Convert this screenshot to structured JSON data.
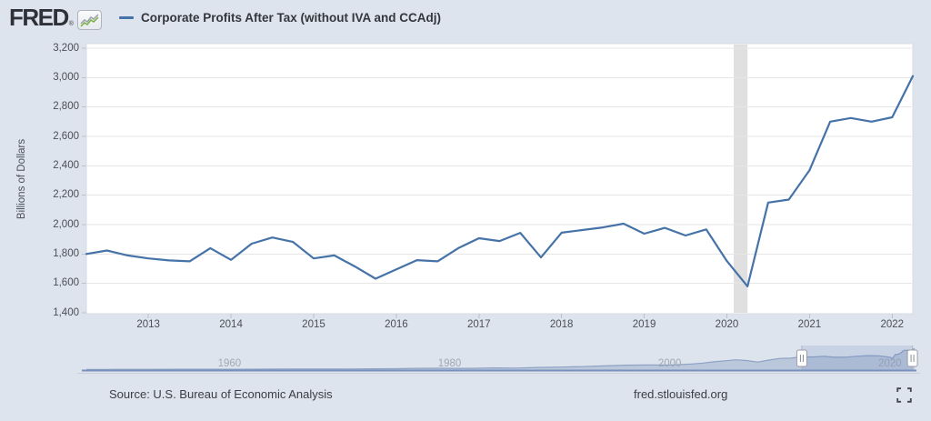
{
  "header": {
    "logo_text": "FRED",
    "registered_mark": "®"
  },
  "footer": {
    "source": "Source: U.S. Bureau of Economic Analysis",
    "site": "fred.stlouisfed.org"
  },
  "colors": {
    "page_bg": "#dde4ed",
    "plot_bg": "#ffffff",
    "gridline": "#e6e6e6",
    "plot_border": "#d7dbe2",
    "line": "#4572a7",
    "recession_band": "#e0e0e0",
    "axis_text": "#4a4f57",
    "minimap_fill": "#b7c3d8",
    "minimap_stroke": "#8da2c4",
    "minimap_baseline": "#7890bc",
    "minimap_label": "#a0a8b3",
    "selection_fill": "rgba(90,120,185,0.16)",
    "logo_green": "#76b041",
    "logo_gray": "#9aa1a8"
  },
  "chart_data": [
    {
      "type": "line",
      "title": "Corporate Profits After Tax (without IVA and CCAdj)",
      "ylabel": "Billions of Dollars",
      "frequency": "Quarterly",
      "xlim_years": [
        2012.25,
        2022.25
      ],
      "ylim": [
        1400,
        3230
      ],
      "grid": "horizontal-only",
      "y_ticks": [
        {
          "value": 3200,
          "label": "3,200"
        },
        {
          "value": 3000,
          "label": "3,000"
        },
        {
          "value": 2800,
          "label": "2,800"
        },
        {
          "value": 2600,
          "label": "2,600"
        },
        {
          "value": 2400,
          "label": "2,400"
        },
        {
          "value": 2200,
          "label": "2,200"
        },
        {
          "value": 2000,
          "label": "2,000"
        },
        {
          "value": 1800,
          "label": "1,800"
        },
        {
          "value": 1600,
          "label": "1,600"
        },
        {
          "value": 1400,
          "label": "1,400"
        }
      ],
      "x_tick_years": [
        2013,
        2014,
        2015,
        2016,
        2017,
        2018,
        2019,
        2020,
        2021,
        2022
      ],
      "recession_band_years": [
        2020.083,
        2020.25
      ],
      "points": [
        [
          "2012-04-01",
          1800
        ],
        [
          "2012-07-01",
          1824
        ],
        [
          "2012-10-01",
          1790
        ],
        [
          "2013-01-01",
          1770
        ],
        [
          "2013-04-01",
          1756
        ],
        [
          "2013-07-01",
          1750
        ],
        [
          "2013-10-01",
          1840
        ],
        [
          "2014-01-01",
          1760
        ],
        [
          "2014-04-01",
          1870
        ],
        [
          "2014-07-01",
          1912
        ],
        [
          "2014-10-01",
          1882
        ],
        [
          "2015-01-01",
          1770
        ],
        [
          "2015-04-01",
          1790
        ],
        [
          "2015-07-01",
          1715
        ],
        [
          "2015-10-01",
          1632
        ],
        [
          "2016-01-01",
          1695
        ],
        [
          "2016-04-01",
          1758
        ],
        [
          "2016-07-01",
          1750
        ],
        [
          "2016-10-01",
          1840
        ],
        [
          "2017-01-01",
          1907
        ],
        [
          "2017-04-01",
          1888
        ],
        [
          "2017-07-01",
          1944
        ],
        [
          "2017-10-01",
          1777
        ],
        [
          "2018-01-01",
          1945
        ],
        [
          "2018-04-01",
          1963
        ],
        [
          "2018-07-01",
          1981
        ],
        [
          "2018-10-01",
          2006
        ],
        [
          "2019-01-01",
          1938
        ],
        [
          "2019-04-01",
          1978
        ],
        [
          "2019-07-01",
          1926
        ],
        [
          "2019-10-01",
          1967
        ],
        [
          "2020-01-01",
          1752
        ],
        [
          "2020-04-01",
          1580
        ],
        [
          "2020-07-01",
          2150
        ],
        [
          "2020-10-01",
          2170
        ],
        [
          "2021-01-01",
          2370
        ],
        [
          "2021-04-01",
          2700
        ],
        [
          "2021-07-01",
          2725
        ],
        [
          "2021-10-01",
          2700
        ],
        [
          "2022-01-01",
          2730
        ],
        [
          "2022-04-01",
          3010
        ]
      ]
    },
    {
      "type": "area",
      "role": "range-selector-minimap",
      "xlim_years": [
        1947,
        2022.25
      ],
      "selection_years": [
        2012.0,
        2022.05
      ],
      "year_labels": [
        1960,
        1980,
        2000,
        2020
      ],
      "series": [
        [
          1947,
          20
        ],
        [
          1949,
          28
        ],
        [
          1951,
          38
        ],
        [
          1953,
          37
        ],
        [
          1955,
          45
        ],
        [
          1957,
          46
        ],
        [
          1959,
          52
        ],
        [
          1961,
          52
        ],
        [
          1963,
          66
        ],
        [
          1965,
          84
        ],
        [
          1967,
          82
        ],
        [
          1969,
          78
        ],
        [
          1971,
          88
        ],
        [
          1973,
          110
        ],
        [
          1975,
          133
        ],
        [
          1977,
          175
        ],
        [
          1979,
          198
        ],
        [
          1980,
          185
        ],
        [
          1982,
          176
        ],
        [
          1984,
          238
        ],
        [
          1986,
          224
        ],
        [
          1988,
          310
        ],
        [
          1990,
          362
        ],
        [
          1992,
          420
        ],
        [
          1994,
          522
        ],
        [
          1996,
          630
        ],
        [
          1998,
          648
        ],
        [
          2000,
          640
        ],
        [
          2002,
          796
        ],
        [
          2003,
          925
        ],
        [
          2004,
          1105
        ],
        [
          2005,
          1240
        ],
        [
          2006,
          1380
        ],
        [
          2007,
          1280
        ],
        [
          2008,
          1070
        ],
        [
          2009,
          1345
        ],
        [
          2010,
          1580
        ],
        [
          2011,
          1620
        ],
        [
          2012,
          1805
        ],
        [
          2013,
          1780
        ],
        [
          2014,
          1880
        ],
        [
          2015,
          1740
        ],
        [
          2016,
          1760
        ],
        [
          2017,
          1880
        ],
        [
          2018,
          1975
        ],
        [
          2019,
          1950
        ],
        [
          2020,
          1752
        ],
        [
          2020.25,
          1580
        ],
        [
          2020.5,
          2150
        ],
        [
          2020.75,
          2170
        ],
        [
          2021,
          2370
        ],
        [
          2021.25,
          2700
        ],
        [
          2021.5,
          2725
        ],
        [
          2021.75,
          2700
        ],
        [
          2022,
          2730
        ],
        [
          2022.25,
          3010
        ]
      ]
    }
  ]
}
